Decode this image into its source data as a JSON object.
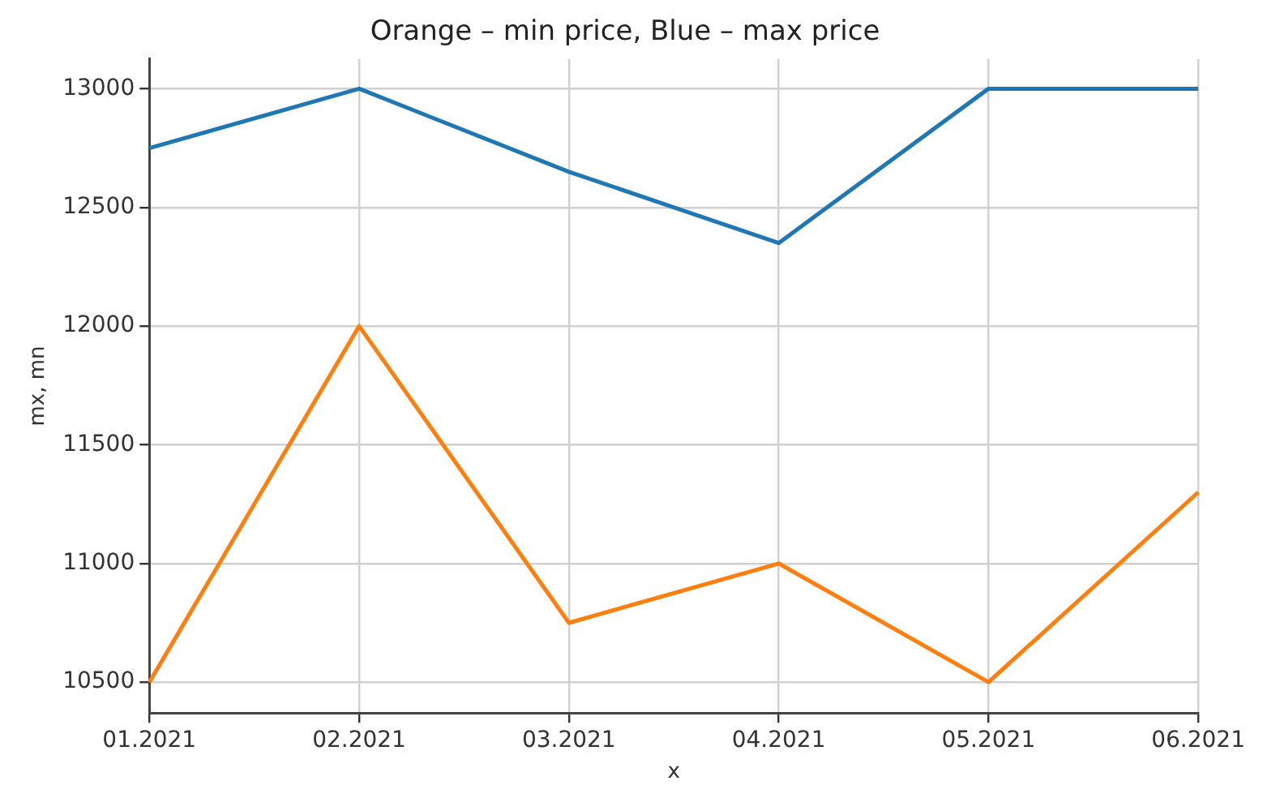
{
  "chart_data": {
    "type": "line",
    "title": "Orange – min price, Blue – max price",
    "xlabel": "x",
    "ylabel": "mx, mn",
    "categories": [
      "01.2021",
      "02.2021",
      "03.2021",
      "04.2021",
      "05.2021",
      "06.2021"
    ],
    "series": [
      {
        "color": "#1f77b4",
        "values": [
          12750,
          13000,
          12650,
          12350,
          13000,
          13000
        ]
      },
      {
        "color": "#ff7f0e",
        "values": [
          10500,
          12000,
          10750,
          11000,
          10500,
          11300
        ]
      }
    ],
    "ylim": [
      10370,
      13125
    ],
    "yticks": [
      10500,
      11000,
      11500,
      12000,
      12500,
      13000
    ],
    "grid": true,
    "legend": false,
    "marker": "none",
    "line_style": "solid"
  }
}
